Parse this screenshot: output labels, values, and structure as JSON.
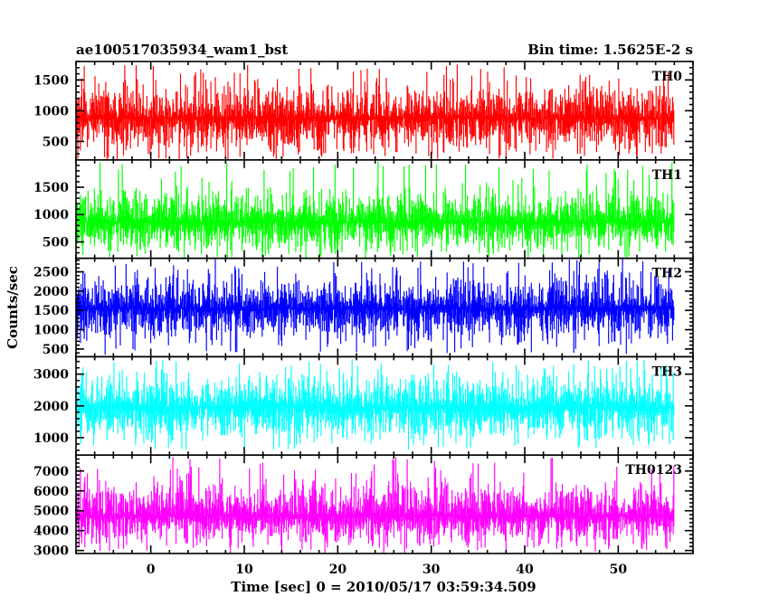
{
  "chart_data": {
    "type": "line",
    "title": "ae100517035934_wam1_bst",
    "subtitle": "Bin time: 1.5625E-2 s",
    "xlabel": "Time [sec] 0 = 2010/05/17 03:59:34.509",
    "ylabel": "Counts/sec",
    "xlim": [
      -8,
      58
    ],
    "xticks": [
      0,
      10,
      20,
      30,
      40,
      50
    ],
    "data_x_range": [
      -8,
      56
    ],
    "grid": false,
    "legend": "none",
    "panels": [
      {
        "name": "TH0",
        "color": "#ff0000",
        "ylim": [
          200,
          1800
        ],
        "yticks": [
          500,
          1000,
          1500,
          2000
        ],
        "mean": 880,
        "typical_low": 300,
        "typical_high": 1400,
        "max": 1760,
        "min": 220
      },
      {
        "name": "TH1",
        "color": "#00ff00",
        "ylim": [
          200,
          2000
        ],
        "yticks": [
          500,
          1000,
          1500
        ],
        "mean": 860,
        "typical_low": 300,
        "typical_high": 1500,
        "max": 1980,
        "min": 210
      },
      {
        "name": "TH2",
        "color": "#0000ff",
        "ylim": [
          300,
          2850
        ],
        "yticks": [
          500,
          1000,
          1500,
          2000,
          2500
        ],
        "mean": 1550,
        "typical_low": 700,
        "typical_high": 2400,
        "max": 2850,
        "min": 380
      },
      {
        "name": "TH3",
        "color": "#00ffff",
        "ylim": [
          450,
          3550
        ],
        "yticks": [
          1000,
          2000,
          3000
        ],
        "mean": 1950,
        "typical_low": 900,
        "typical_high": 3000,
        "max": 3500,
        "min": 580
      },
      {
        "name": "TH0123",
        "color": "#ff00ff",
        "ylim": [
          2850,
          7800
        ],
        "yticks": [
          3000,
          4000,
          5000,
          6000,
          7000
        ],
        "mean": 4750,
        "typical_low": 3300,
        "typical_high": 6700,
        "max": 7700,
        "min": 2950
      }
    ]
  }
}
